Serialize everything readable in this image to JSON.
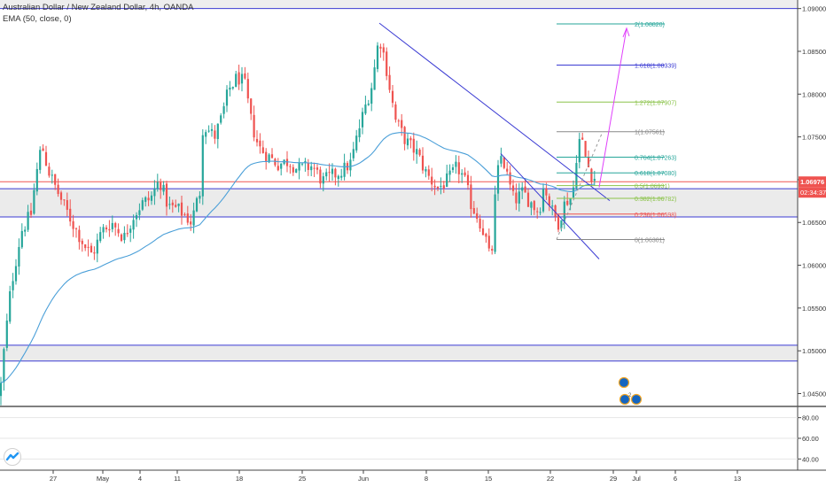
{
  "header": {
    "symbol_line": "Australian Dollar / New Zealand Dollar, 4h, OANDA",
    "indicator_line": "EMA (50, close, 0)"
  },
  "badges": {
    "price": "1.06976",
    "countdown": "02:34:37"
  },
  "colors": {
    "up": "#26a69a",
    "down": "#ef5350",
    "ema": "#4a9fd8",
    "trend": "#3b3bd3",
    "fib_green": "#26a69a",
    "fib_lime": "#8bc34a",
    "fib_blue": "#3b3bd3",
    "fib_red": "#ef5350",
    "projection": "#e040fb",
    "zone": "#ebebeb"
  },
  "chart_data": {
    "type": "candlestick",
    "title": "Australian Dollar / New Zealand Dollar, 4h, OANDA",
    "ylim": [
      1.0435,
      1.091
    ],
    "y_ticks": [
      "1.09000",
      "1.08500",
      "1.08000",
      "1.07500",
      "1.07000",
      "1.06500",
      "1.06000",
      "1.05500",
      "1.05000",
      "1.04500"
    ],
    "x_ticks": [
      "27",
      "May",
      "4",
      "11",
      "18",
      "25",
      "Jun",
      "8",
      "15",
      "22",
      "29",
      "Jul",
      "6",
      "13"
    ],
    "last_price": 1.06976,
    "ema_period": 50,
    "indicator_panel": {
      "ylim": [
        30,
        90
      ],
      "ticks": [
        "80.00",
        "60.00",
        "40.00"
      ],
      "levels": [
        80,
        60,
        40
      ]
    },
    "zones": [
      {
        "from": 1.06565,
        "to": 1.06895
      },
      {
        "from": 1.0488,
        "to": 1.05065
      }
    ],
    "horizontal_lines": [
      1.09,
      1.06976
    ],
    "fib_levels": [
      {
        "label": "2(1.08820)",
        "value": 1.0882,
        "color": "fib_green"
      },
      {
        "label": "1.618(1.08339)",
        "value": 1.08339,
        "color": "fib_blue"
      },
      {
        "label": "1.272(1.07907)",
        "value": 1.07907,
        "color": "fib_lime"
      },
      {
        "label": "1(1.07561)",
        "value": 1.07561,
        "color": "gray"
      },
      {
        "label": "0.764(1.07263)",
        "value": 1.07263,
        "color": "fib_green"
      },
      {
        "label": "0.618(1.07080)",
        "value": 1.0708,
        "color": "fib_green"
      },
      {
        "label": "0.5(1.06931)",
        "value": 1.06931,
        "color": "fib_lime"
      },
      {
        "label": "0.382(1.06782)",
        "value": 1.06782,
        "color": "fib_lime"
      },
      {
        "label": "0.236(1.06598)",
        "value": 1.06598,
        "color": "fib_red"
      },
      {
        "label": "0(1.06301)",
        "value": 1.06301,
        "color": "gray"
      }
    ]
  }
}
